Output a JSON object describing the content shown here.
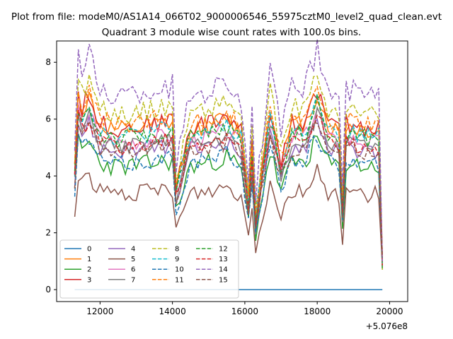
{
  "chart_data": {
    "type": "line",
    "suptitle": "Plot from file: modeM0/AS1A14_066T02_9000006546_55975cztM0_level2_quad_clean.evt",
    "title": "Quadrant 3 module wise count rates with 100.0s bins.",
    "xlabel": "",
    "ylabel": "",
    "x_offset_label": "+5.076e8",
    "xlim": [
      10800,
      20500
    ],
    "ylim": [
      -0.42,
      8.75
    ],
    "xticks": [
      12000,
      14000,
      16000,
      18000,
      20000
    ],
    "xtick_labels": [
      "12000",
      "14000",
      "16000",
      "18000",
      "20000"
    ],
    "yticks": [
      0,
      2,
      4,
      6,
      8
    ],
    "ytick_labels": [
      "0",
      "2",
      "4",
      "6",
      "8"
    ],
    "x_start": 11300,
    "x_step": 100,
    "legend_position": "lower-left",
    "anchors_x": [
      11300,
      11400,
      11500,
      11700,
      12000,
      12500,
      13000,
      13500,
      14000,
      14100,
      14500,
      15000,
      15500,
      15900,
      16100,
      16200,
      16300,
      16400,
      16700,
      17000,
      17300,
      17700,
      18000,
      18300,
      18600,
      18700,
      18800,
      19200,
      19600,
      19700,
      19800
    ],
    "series": [
      {
        "name": "0",
        "color": "#1f77b4",
        "dash": "solid",
        "mean": 0.0,
        "amp": 0.0,
        "seed": 0
      },
      {
        "name": "1",
        "color": "#ff7f0e",
        "dash": "solid",
        "mean": 5.75,
        "amp": 0.35,
        "seed": 11
      },
      {
        "name": "2",
        "color": "#2ca02c",
        "dash": "solid",
        "mean": 4.45,
        "amp": 0.35,
        "seed": 22
      },
      {
        "name": "3",
        "color": "#d62728",
        "dash": "solid",
        "mean": 5.85,
        "amp": 0.35,
        "seed": 33
      },
      {
        "name": "4",
        "color": "#9467bd",
        "dash": "solid",
        "mean": 5.0,
        "amp": 0.3,
        "seed": 44
      },
      {
        "name": "5",
        "color": "#8c564b",
        "dash": "solid",
        "mean": 3.45,
        "amp": 0.3,
        "seed": 55
      },
      {
        "name": "6",
        "color": "#e377c2",
        "dash": "solid",
        "mean": 5.35,
        "amp": 0.3,
        "seed": 66
      },
      {
        "name": "7",
        "color": "#7f7f7f",
        "dash": "solid",
        "mean": 5.15,
        "amp": 0.3,
        "seed": 77
      },
      {
        "name": "8",
        "color": "#bcbd22",
        "dash": "dashed",
        "mean": 6.35,
        "amp": 0.35,
        "seed": 88
      },
      {
        "name": "9",
        "color": "#17becf",
        "dash": "dashed",
        "mean": 5.55,
        "amp": 0.35,
        "seed": 99
      },
      {
        "name": "10",
        "color": "#1f77b4",
        "dash": "dashed",
        "mean": 4.55,
        "amp": 0.3,
        "seed": 111
      },
      {
        "name": "11",
        "color": "#ff7f0e",
        "dash": "dashed",
        "mean": 5.95,
        "amp": 0.35,
        "seed": 122
      },
      {
        "name": "12",
        "color": "#2ca02c",
        "dash": "dashed",
        "mean": 5.45,
        "amp": 0.35,
        "seed": 133
      },
      {
        "name": "13",
        "color": "#d62728",
        "dash": "dashed",
        "mean": 5.15,
        "amp": 0.3,
        "seed": 144
      },
      {
        "name": "14",
        "color": "#9467bd",
        "dash": "dashed",
        "mean": 7.05,
        "amp": 0.45,
        "seed": 155
      },
      {
        "name": "15",
        "color": "#8c564b",
        "dash": "dashed",
        "mean": 4.95,
        "amp": 0.3,
        "seed": 166
      }
    ],
    "profile": [
      0.74,
      1.18,
      1.09,
      1.17,
      1.0,
      0.97,
      0.98,
      1.0,
      1.02,
      0.62,
      0.98,
      1.0,
      1.05,
      0.95,
      0.55,
      0.86,
      0.42,
      0.62,
      1.09,
      0.78,
      1.0,
      1.02,
      1.2,
      1.0,
      0.96,
      0.5,
      1.0,
      0.98,
      0.97,
      0.97,
      0.18
    ]
  }
}
